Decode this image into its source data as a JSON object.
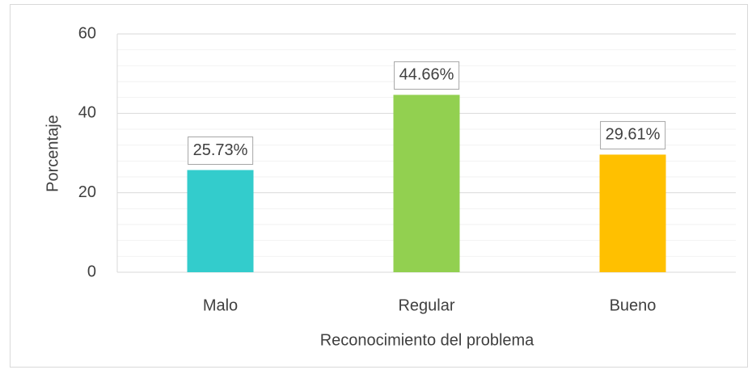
{
  "chart_data": {
    "type": "bar",
    "x_label": "Reconocimiento del problema",
    "y_label": "Porcentaje",
    "categories": [
      "Malo",
      "Regular",
      "Bueno"
    ],
    "values": [
      25.73,
      44.66,
      29.61
    ],
    "value_labels": [
      "25.73%",
      "44.66%",
      "29.61%"
    ],
    "colors": [
      "#33CCCC",
      "#92D050",
      "#FFC000"
    ],
    "ylim": [
      0,
      60
    ],
    "yticks": [
      0,
      20,
      40,
      60
    ],
    "grid": true,
    "minor_grid_divisions": 5
  }
}
